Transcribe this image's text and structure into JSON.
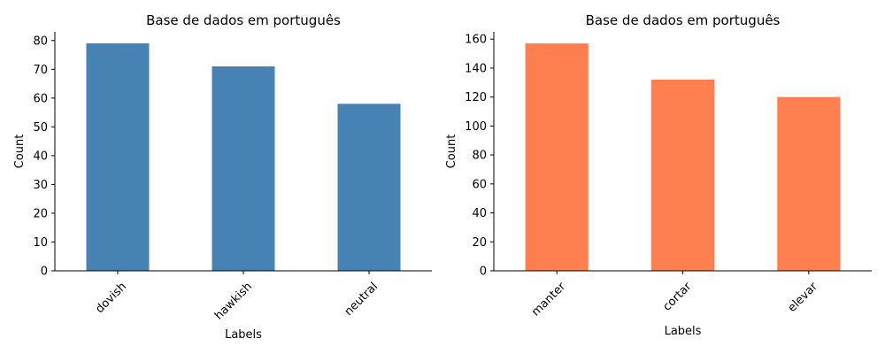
{
  "chart_data": [
    {
      "type": "bar",
      "title": "Base de dados em português",
      "xlabel": "Labels",
      "ylabel": "Count",
      "categories": [
        "dovish",
        "hawkish",
        "neutral"
      ],
      "values": [
        79,
        71,
        58
      ],
      "ylim": [
        0,
        83
      ],
      "yticks": [
        0,
        10,
        20,
        30,
        40,
        50,
        60,
        70,
        80
      ],
      "color": "#4682b4",
      "grid": false,
      "legend": "none",
      "xtick_rotation": 45
    },
    {
      "type": "bar",
      "title": "Base de dados em português",
      "xlabel": "Labels",
      "ylabel": "Count",
      "categories": [
        "manter",
        "cortar",
        "elevar"
      ],
      "values": [
        157,
        132,
        120
      ],
      "ylim": [
        0,
        165
      ],
      "yticks": [
        0,
        20,
        40,
        60,
        80,
        100,
        120,
        140,
        160
      ],
      "color": "#ff7f50",
      "grid": false,
      "legend": "none",
      "xtick_rotation": 45
    }
  ]
}
